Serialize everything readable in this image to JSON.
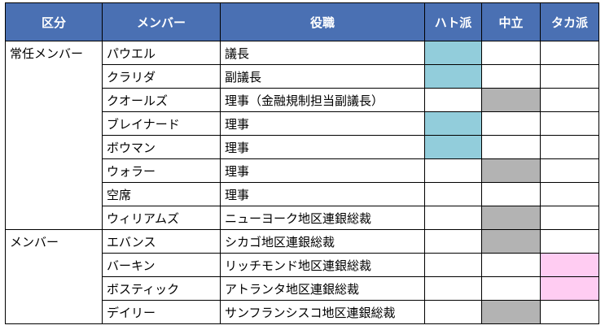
{
  "headers": {
    "category": "区分",
    "member": "メンバー",
    "position": "役職",
    "dove": "ハト派",
    "neutral": "中立",
    "hawk": "タカ派"
  },
  "groups": [
    {
      "label": "常任メンバー",
      "rows": [
        {
          "name": "パウエル",
          "position": "議長",
          "stance": "dove"
        },
        {
          "name": "クラリダ",
          "position": "副議長",
          "stance": "dove"
        },
        {
          "name": "クオールズ",
          "position": "理事（金融規制担当副議長）",
          "stance": "neutral"
        },
        {
          "name": "ブレイナード",
          "position": "理事",
          "stance": "dove"
        },
        {
          "name": "ボウマン",
          "position": "理事",
          "stance": "dove"
        },
        {
          "name": "ウォラー",
          "position": "理事",
          "stance": "neutral"
        },
        {
          "name": "空席",
          "position": "理事",
          "stance": "none"
        },
        {
          "name": "ウィリアムズ",
          "position": "ニューヨーク地区連銀総裁",
          "stance": "neutral"
        }
      ]
    },
    {
      "label": "メンバー",
      "rows": [
        {
          "name": "エバンス",
          "position": "シカゴ地区連銀総裁",
          "stance": "neutral"
        },
        {
          "name": "バーキン",
          "position": "リッチモンド地区連銀総裁",
          "stance": "hawk"
        },
        {
          "name": "ボスティック",
          "position": "アトランタ地区連銀総裁",
          "stance": "hawk"
        },
        {
          "name": "デイリー",
          "position": "サンフランシスコ地区連銀総裁",
          "stance": "neutral"
        }
      ]
    }
  ],
  "colors": {
    "header": "#4a70b3",
    "dove": "#92cddb",
    "neutral": "#b3b3b3",
    "hawk": "#ffccf2"
  }
}
